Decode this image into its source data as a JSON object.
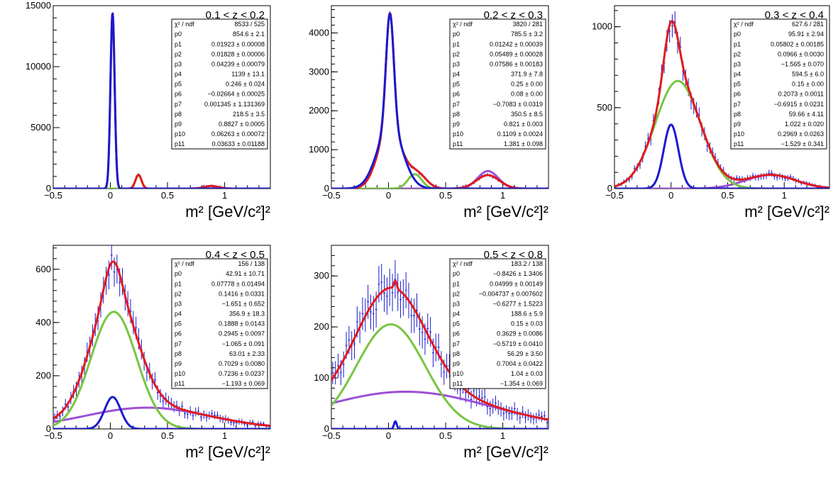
{
  "chart_data": [
    {
      "type": "line",
      "title": "0.1 < z < 0.2",
      "xlabel": "m² [GeV/c²]²",
      "xlim": [
        -0.5,
        1.4
      ],
      "ylim": [
        0,
        15000
      ],
      "xticks": [
        "−0.5",
        "0",
        "0.5",
        "1"
      ],
      "yticks": [
        "0",
        "5000",
        "10000",
        "15000"
      ],
      "stats": [
        [
          "χ² / ndf",
          "8533 / 525"
        ],
        [
          "p0",
          "854.6 ± 2.1"
        ],
        [
          "p1",
          "0.01923 ± 0.00008"
        ],
        [
          "p2",
          "0.01828 ± 0.00006"
        ],
        [
          "p3",
          "0.04239 ± 0.00079"
        ],
        [
          "p4",
          "1139 ± 13.1"
        ],
        [
          "p5",
          "0.246 ± 0.024"
        ],
        [
          "p6",
          "−0.02664 ± 0.00025"
        ],
        [
          "p7",
          "0.001345 ± 1.131369"
        ],
        [
          "p8",
          "218.5 ± 3.5"
        ],
        [
          "p9",
          "0.8827 ± 0.0005"
        ],
        [
          "p10",
          "0.06263 ± 0.00072"
        ],
        [
          "p11",
          "0.03633 ± 0.01188"
        ]
      ],
      "series": [
        {
          "color": "#e31a1c",
          "components": [
            {
              "amp": 14400,
              "mu": 0.0192,
              "sigma": 0.0183
            },
            {
              "amp": 1130,
              "mu": 0.246,
              "sigma": 0.0264
            },
            {
              "amp": 215,
              "mu": 0.8827,
              "sigma": 0.0626
            }
          ]
        },
        {
          "color": "#77c541",
          "components": [
            {
              "amp": 1130,
              "mu": 0.246,
              "sigma": 0.0264
            }
          ]
        },
        {
          "color": "#9b4fd6",
          "components": [
            {
              "amp": 215,
              "mu": 0.8827,
              "sigma": 0.0626
            }
          ]
        },
        {
          "color": "#1a1acf",
          "components": [
            {
              "amp": 14400,
              "mu": 0.0192,
              "sigma": 0.0183
            }
          ]
        }
      ]
    },
    {
      "type": "line",
      "title": "0.2 < z < 0.3",
      "xlabel": "m² [GeV/c²]²",
      "xlim": [
        -0.5,
        1.4
      ],
      "ylim": [
        0,
        4700
      ],
      "xticks": [
        "−0.5",
        "0",
        "0.5",
        "1"
      ],
      "yticks": [
        "0",
        "1000",
        "2000",
        "3000",
        "4000"
      ],
      "stats": [
        [
          "χ² / ndf",
          "3820 / 281"
        ],
        [
          "p0",
          "785.5 ± 3.2"
        ],
        [
          "p1",
          "0.01242 ± 0.00039"
        ],
        [
          "p2",
          "0.05489 ± 0.00028"
        ],
        [
          "p3",
          "0.07586 ± 0.00183"
        ],
        [
          "p4",
          "371.9 ± 7.8"
        ],
        [
          "p5",
          "0.25 ± 0.00"
        ],
        [
          "p6",
          "0.08 ± 0.00"
        ],
        [
          "p7",
          "−0.7083 ± 0.0319"
        ],
        [
          "p8",
          "350.5 ± 8.5"
        ],
        [
          "p9",
          "0.821 ± 0.003"
        ],
        [
          "p10",
          "0.1109 ± 0.0024"
        ],
        [
          "p11",
          "1.381 ± 0.098"
        ]
      ],
      "series": [
        {
          "color": "#e31a1c",
          "components": [
            {
              "amp": 2900,
              "mu": 0.0124,
              "sigma": 0.034
            },
            {
              "amp": 1600,
              "mu": 0.0124,
              "sigma": 0.1
            },
            {
              "amp": 370,
              "mu": 0.25,
              "sigma": 0.08
            },
            {
              "amp": 345,
              "mu": 0.87,
              "sigma": 0.1
            }
          ]
        },
        {
          "color": "#77c541",
          "components": [
            {
              "amp": 370,
              "mu": 0.23,
              "sigma": 0.06
            }
          ]
        },
        {
          "color": "#9b4fd6",
          "components": [
            {
              "amp": 450,
              "mu": 0.87,
              "sigma": 0.09
            }
          ]
        },
        {
          "color": "#1a1acf",
          "components": [
            {
              "amp": 2900,
              "mu": 0.0124,
              "sigma": 0.034
            },
            {
              "amp": 1600,
              "mu": 0.0124,
              "sigma": 0.11
            }
          ]
        }
      ]
    },
    {
      "type": "line",
      "title": "0.3 < z < 0.4",
      "xlabel": "m² [GeV/c²]²",
      "xlim": [
        -0.5,
        1.4
      ],
      "ylim": [
        0,
        1130
      ],
      "xticks": [
        "−0.5",
        "0",
        "0.5",
        "1"
      ],
      "yticks": [
        "0",
        "500",
        "1000"
      ],
      "stats": [
        [
          "χ² / ndf",
          "627.6 / 281"
        ],
        [
          "p0",
          "95.91 ± 2.94"
        ],
        [
          "p1",
          "0.05802 ± 0.00185"
        ],
        [
          "p2",
          "0.0966 ± 0.0030"
        ],
        [
          "p3",
          "−1.565 ± 0.070"
        ],
        [
          "p4",
          "594.5 ± 6.0"
        ],
        [
          "p5",
          "0.15 ± 0.00"
        ],
        [
          "p6",
          "0.2073 ± 0.0011"
        ],
        [
          "p7",
          "−0.6915 ± 0.0231"
        ],
        [
          "p8",
          "59.66 ± 4.11"
        ],
        [
          "p9",
          "1.022 ± 0.020"
        ],
        [
          "p10",
          "0.2969 ± 0.0263"
        ],
        [
          "p11",
          "−1.529 ± 0.341"
        ]
      ],
      "series": [
        {
          "color": "#e31a1c",
          "components": [
            {
              "amp": 395,
              "mu": 0.0,
              "sigma": 0.065
            },
            {
              "amp": 665,
              "mu": 0.06,
              "sigma": 0.2
            },
            {
              "amp": 85,
              "mu": 0.88,
              "sigma": 0.22
            }
          ]
        },
        {
          "color": "#77c541",
          "components": [
            {
              "amp": 665,
              "mu": 0.06,
              "sigma": 0.2
            }
          ]
        },
        {
          "color": "#9b4fd6",
          "components": [
            {
              "amp": 85,
              "mu": 0.88,
              "sigma": 0.22
            }
          ]
        },
        {
          "color": "#1a1acf",
          "components": [
            {
              "amp": 395,
              "mu": 0.0,
              "sigma": 0.065
            }
          ]
        }
      ]
    },
    {
      "type": "line",
      "title": "0.4 < z < 0.5",
      "xlabel": "m² [GeV/c²]²",
      "xlim": [
        -0.5,
        1.4
      ],
      "ylim": [
        0,
        690
      ],
      "xticks": [
        "−0.5",
        "0",
        "0.5",
        "1"
      ],
      "yticks": [
        "0",
        "200",
        "400",
        "600"
      ],
      "stats": [
        [
          "χ² / ndf",
          "156 / 138"
        ],
        [
          "p0",
          "42.91 ± 10.71"
        ],
        [
          "p1",
          "0.07778 ± 0.01494"
        ],
        [
          "p2",
          "0.1416 ± 0.0331"
        ],
        [
          "p3",
          "−1.651 ± 0.652"
        ],
        [
          "p4",
          "356.9 ± 18.3"
        ],
        [
          "p5",
          "0.1888 ± 0.0143"
        ],
        [
          "p6",
          "0.2945 ± 0.0097"
        ],
        [
          "p7",
          "−1.065 ± 0.091"
        ],
        [
          "p8",
          "63.01 ± 2.33"
        ],
        [
          "p9",
          "0.7029 ± 0.0080"
        ],
        [
          "p10",
          "0.7236 ± 0.0237"
        ],
        [
          "p11",
          "−1.193 ± 0.069"
        ]
      ],
      "series": [
        {
          "color": "#e31a1c",
          "components": [
            {
              "amp": 120,
              "mu": 0.02,
              "sigma": 0.07
            },
            {
              "amp": 440,
              "mu": 0.03,
              "sigma": 0.2
            },
            {
              "amp": 80,
              "mu": 0.32,
              "sigma": 0.55
            }
          ]
        },
        {
          "color": "#77c541",
          "components": [
            {
              "amp": 440,
              "mu": 0.03,
              "sigma": 0.2
            }
          ]
        },
        {
          "color": "#9b4fd6",
          "components": [
            {
              "amp": 80,
              "mu": 0.32,
              "sigma": 0.55
            }
          ]
        },
        {
          "color": "#1a1acf",
          "components": [
            {
              "amp": 120,
              "mu": 0.02,
              "sigma": 0.07
            }
          ]
        }
      ]
    },
    {
      "type": "line",
      "title": "0.5 < z < 0.8",
      "xlabel": "m² [GeV/c²]²",
      "xlim": [
        -0.5,
        1.4
      ],
      "ylim": [
        0,
        360
      ],
      "xticks": [
        "−0.5",
        "0",
        "0.5",
        "1"
      ],
      "yticks": [
        "0",
        "100",
        "200",
        "300"
      ],
      "stats": [
        [
          "χ² / ndf",
          "183.2 / 138"
        ],
        [
          "p0",
          "−0.8426 ± 1.3406"
        ],
        [
          "p1",
          "0.04999 ± 0.00149"
        ],
        [
          "p2",
          "−0.004737 ± 0.007602"
        ],
        [
          "p3",
          "−0.6277 ± 1.5223"
        ],
        [
          "p4",
          "188.6 ± 5.9"
        ],
        [
          "p5",
          "0.15 ± 0.03"
        ],
        [
          "p6",
          "0.3629 ± 0.0086"
        ],
        [
          "p7",
          "−0.5719 ± 0.0410"
        ],
        [
          "p8",
          "56.29 ± 3.50"
        ],
        [
          "p9",
          "0.7004 ± 0.0422"
        ],
        [
          "p10",
          "1.04 ± 0.03"
        ],
        [
          "p11",
          "−1.354 ± 0.069"
        ]
      ],
      "series": [
        {
          "color": "#e31a1c",
          "components": [
            {
              "amp": 15,
              "mu": 0.06,
              "sigma": 0.012
            },
            {
              "amp": 205,
              "mu": 0.02,
              "sigma": 0.3
            },
            {
              "amp": 73,
              "mu": 0.15,
              "sigma": 0.75
            }
          ]
        },
        {
          "color": "#77c541",
          "components": [
            {
              "amp": 205,
              "mu": 0.02,
              "sigma": 0.3
            }
          ]
        },
        {
          "color": "#9b4fd6",
          "components": [
            {
              "amp": 73,
              "mu": 0.15,
              "sigma": 0.75
            }
          ]
        },
        {
          "color": "#1a1acf",
          "components": [
            {
              "amp": 15,
              "mu": 0.06,
              "sigma": 0.012
            }
          ]
        }
      ]
    }
  ]
}
